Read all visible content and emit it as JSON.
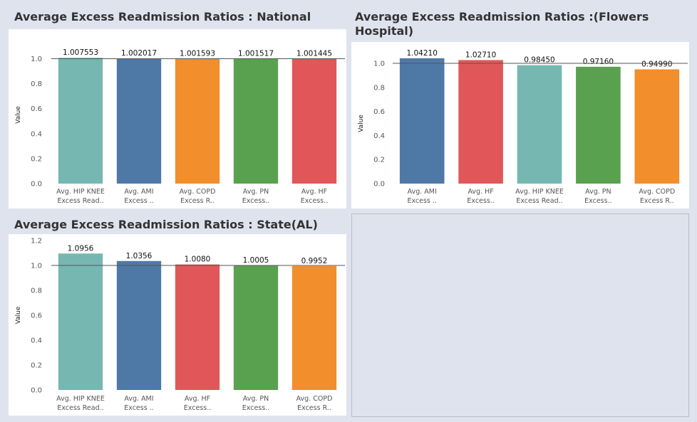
{
  "colors": {
    "hip_knee": "#76b7b2",
    "ami": "#4e79a7",
    "copd": "#f28e2b",
    "pn": "#59a14f",
    "hf": "#e15759"
  },
  "chart_data": [
    {
      "type": "bar",
      "title": "Average  Excess Readmission Ratios : National",
      "ylabel": "Value",
      "ylim": [
        0,
        1.1
      ],
      "yticks": [
        0.0,
        0.2,
        0.4,
        0.6,
        0.8,
        1.0
      ],
      "yticklabels": [
        "0.0",
        "0.2",
        "0.4",
        "0.6",
        "0.8",
        "1.0"
      ],
      "reference_line": 1.0,
      "categories": [
        [
          "Avg. HIP KNEE",
          "Excess Read.."
        ],
        [
          "Avg. AMI",
          "Excess .."
        ],
        [
          "Avg. COPD",
          "Excess R.."
        ],
        [
          "Avg. PN",
          "Excess.."
        ],
        [
          "Avg. HF",
          "Excess.."
        ]
      ],
      "values": [
        1.007553,
        1.002017,
        1.001593,
        1.001517,
        1.001445
      ],
      "value_labels": [
        "1.007553",
        "1.002017",
        "1.001593",
        "1.001517",
        "1.001445"
      ],
      "bar_colors": [
        "#76b7b2",
        "#4e79a7",
        "#f28e2b",
        "#59a14f",
        "#e15759"
      ]
    },
    {
      "type": "bar",
      "title": "Average  Excess Readmission Ratios :(Flowers Hospital)",
      "ylabel": "Value",
      "ylim": [
        0,
        1.0
      ],
      "yticks": [
        0.0,
        0.2,
        0.4,
        0.6,
        0.8,
        1.0
      ],
      "yticklabels": [
        "0.0",
        "0.2",
        "0.4",
        "0.6",
        "0.8",
        "1.0"
      ],
      "reference_line": 1.0,
      "categories": [
        [
          "Avg. AMI",
          "Excess .."
        ],
        [
          "Avg. HF",
          "Excess.."
        ],
        [
          "Avg. HIP KNEE",
          "Excess Read.."
        ],
        [
          "Avg. PN",
          "Excess.."
        ],
        [
          "Avg. COPD",
          "Excess R.."
        ]
      ],
      "values": [
        1.0421,
        1.0271,
        0.9845,
        0.9716,
        0.9499
      ],
      "value_labels": [
        "1.04210",
        "1.02710",
        "0.98450",
        "0.97160",
        "0.94990"
      ],
      "bar_colors": [
        "#4e79a7",
        "#e15759",
        "#76b7b2",
        "#59a14f",
        "#f28e2b"
      ]
    },
    {
      "type": "bar",
      "title": "Average  Excess Readmission Ratios : State(AL)",
      "ylabel": "Value",
      "ylim": [
        0,
        1.2
      ],
      "yticks": [
        0.0,
        0.2,
        0.4,
        0.6,
        0.8,
        1.0,
        1.2
      ],
      "yticklabels": [
        "0.0",
        "0.2",
        "0.4",
        "0.6",
        "0.8",
        "1.0",
        "1.2"
      ],
      "reference_line": 1.0,
      "categories": [
        [
          "Avg. HIP KNEE",
          "Excess Read.."
        ],
        [
          "Avg. AMI",
          "Excess .."
        ],
        [
          "Avg. HF",
          "Excess.."
        ],
        [
          "Avg. PN",
          "Excess.."
        ],
        [
          "Avg. COPD",
          "Excess R.."
        ]
      ],
      "values": [
        1.0956,
        1.0356,
        1.008,
        1.0005,
        0.9952
      ],
      "value_labels": [
        "1.0956",
        "1.0356",
        "1.0080",
        "1.0005",
        "0.9952"
      ],
      "bar_colors": [
        "#76b7b2",
        "#4e79a7",
        "#e15759",
        "#59a14f",
        "#f28e2b"
      ]
    }
  ]
}
